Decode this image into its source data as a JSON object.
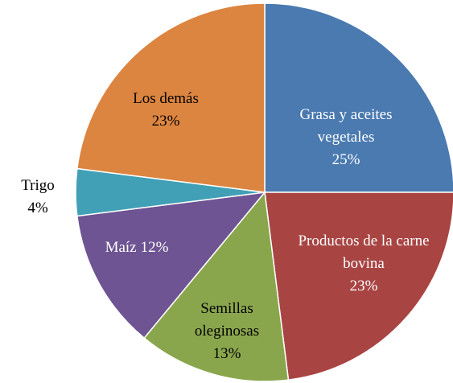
{
  "chart_data": {
    "type": "pie",
    "categories": [
      "Grasa y aceites vegetales",
      "Productos de la carne bovina",
      "Semillas oleginosas",
      "Maíz",
      "Trigo",
      "Los demás"
    ],
    "values": [
      25,
      23,
      13,
      12,
      4,
      23
    ],
    "value_labels": [
      "25%",
      "23%",
      "13%",
      "12%",
      "4%",
      "23%"
    ],
    "colors": [
      "#4a7ab0",
      "#a84543",
      "#8aa64d",
      "#6e5492",
      "#41a0b5",
      "#dc8540"
    ]
  }
}
